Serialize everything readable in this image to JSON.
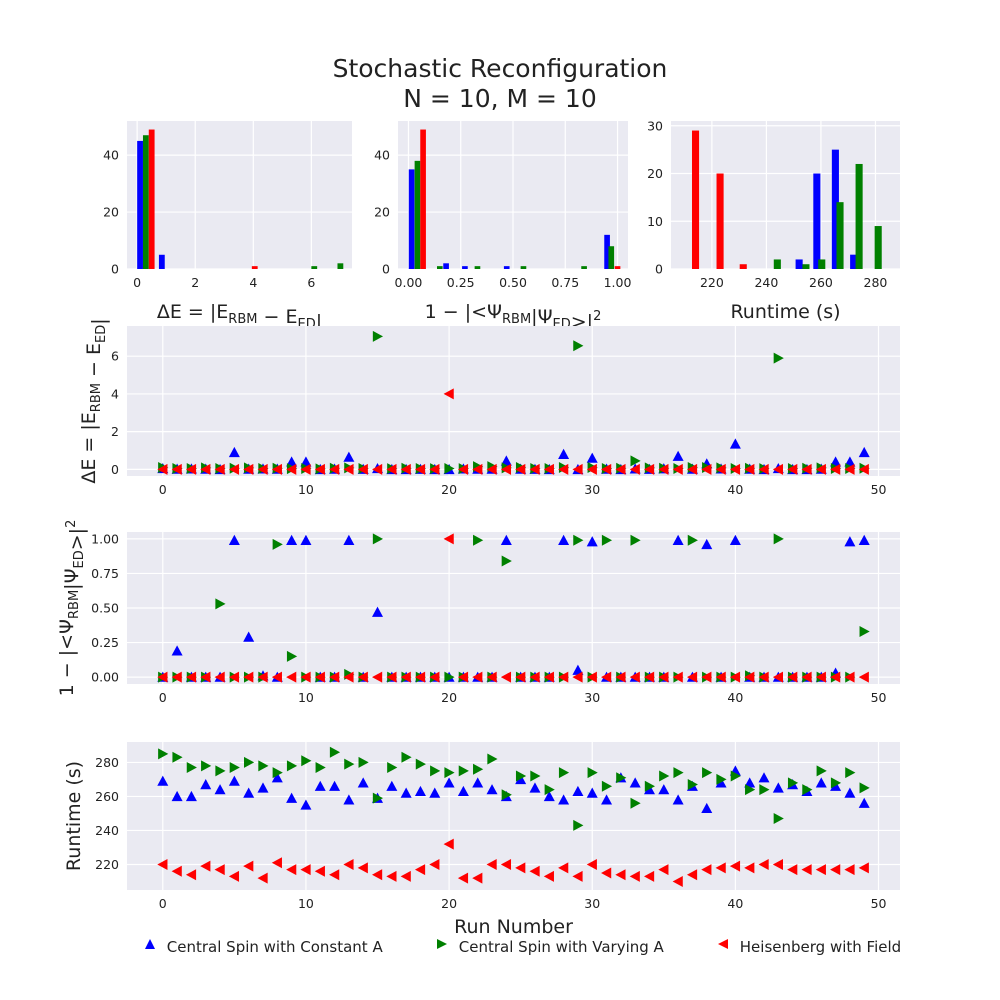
{
  "title": "Stochastic Reconfiguration",
  "subtitle": "N = 10, M = 10",
  "colors": {
    "constant": "#0000ff",
    "varying": "#008000",
    "heisenberg": "#ff0000"
  },
  "legend": [
    {
      "label": "Central Spin with Constant A",
      "marker": "triangle-up",
      "color": "#0000ff"
    },
    {
      "label": "Central Spin with Varying A",
      "marker": "triangle-right",
      "color": "#008000"
    },
    {
      "label": "Heisenberg with Field",
      "marker": "triangle-left",
      "color": "#ff0000"
    }
  ],
  "chart_data": [
    {
      "id": "hist-energy",
      "type": "bar",
      "xlabel": "ΔE = |E_RBM − E_ED|",
      "ylabel": "",
      "xlim": [
        -0.35,
        7.4
      ],
      "ylim": [
        0,
        52
      ],
      "xticks": [
        0,
        2,
        4,
        6
      ],
      "yticks": [
        0,
        20,
        40
      ],
      "bar_width": 0.2,
      "series": [
        {
          "name": "Central Spin with Constant A",
          "bars": [
            {
              "x": 0.1,
              "h": 45
            },
            {
              "x": 0.85,
              "h": 5
            }
          ]
        },
        {
          "name": "Central Spin with Varying A",
          "bars": [
            {
              "x": 0.3,
              "h": 47
            },
            {
              "x": 6.1,
              "h": 1
            },
            {
              "x": 7.0,
              "h": 2
            }
          ]
        },
        {
          "name": "Heisenberg with Field",
          "bars": [
            {
              "x": 0.5,
              "h": 49
            },
            {
              "x": 4.05,
              "h": 1
            }
          ]
        }
      ]
    },
    {
      "id": "hist-overlap",
      "type": "bar",
      "xlabel": "1 − |<Ψ_RBM|Ψ_ED>|²",
      "ylabel": "",
      "xlim": [
        -0.05,
        1.05
      ],
      "ylim": [
        0,
        52
      ],
      "xticks": [
        0.0,
        0.25,
        0.5,
        0.75,
        1.0
      ],
      "xticklabels": [
        "0.00",
        "0.25",
        "0.50",
        "0.75",
        "1.00"
      ],
      "yticks": [
        0,
        20,
        40
      ],
      "bar_width": 0.027,
      "series": [
        {
          "name": "Central Spin with Constant A",
          "bars": [
            {
              "x": 0.015,
              "h": 35
            },
            {
              "x": 0.18,
              "h": 2
            },
            {
              "x": 0.27,
              "h": 1
            },
            {
              "x": 0.47,
              "h": 1
            },
            {
              "x": 0.95,
              "h": 12
            }
          ]
        },
        {
          "name": "Central Spin with Varying A",
          "bars": [
            {
              "x": 0.043,
              "h": 38
            },
            {
              "x": 0.15,
              "h": 1
            },
            {
              "x": 0.33,
              "h": 1
            },
            {
              "x": 0.55,
              "h": 1
            },
            {
              "x": 0.84,
              "h": 1
            },
            {
              "x": 0.97,
              "h": 8
            }
          ]
        },
        {
          "name": "Heisenberg with Field",
          "bars": [
            {
              "x": 0.07,
              "h": 49
            },
            {
              "x": 1.0,
              "h": 1
            }
          ]
        }
      ]
    },
    {
      "id": "hist-runtime",
      "type": "bar",
      "xlabel": "Runtime (s)",
      "ylabel": "",
      "xlim": [
        205,
        289
      ],
      "ylim": [
        0,
        31
      ],
      "xticks": [
        220,
        240,
        260,
        280
      ],
      "yticks": [
        0,
        10,
        20,
        30
      ],
      "bar_width": 2.6,
      "series": [
        {
          "name": "Central Spin with Constant A",
          "bars": [
            {
              "x": 252,
              "h": 2
            },
            {
              "x": 258.5,
              "h": 20
            },
            {
              "x": 265.3,
              "h": 25
            },
            {
              "x": 272,
              "h": 3
            }
          ]
        },
        {
          "name": "Central Spin with Varying A",
          "bars": [
            {
              "x": 244,
              "h": 2
            },
            {
              "x": 254.5,
              "h": 1
            },
            {
              "x": 260.3,
              "h": 2
            },
            {
              "x": 267,
              "h": 14
            },
            {
              "x": 274,
              "h": 22
            },
            {
              "x": 281,
              "h": 9
            }
          ]
        },
        {
          "name": "Heisenberg with Field",
          "bars": [
            {
              "x": 214,
              "h": 29
            },
            {
              "x": 223,
              "h": 20
            },
            {
              "x": 231.5,
              "h": 1
            }
          ]
        }
      ]
    },
    {
      "id": "scatter-energy",
      "type": "scatter",
      "xlabel": "",
      "ylabel": "ΔE = |E_RBM − E_ED|",
      "xlim": [
        -2.5,
        51.5
      ],
      "ylim": [
        -0.35,
        7.6
      ],
      "xticks": [
        0,
        10,
        20,
        30,
        40,
        50
      ],
      "yticks": [
        0,
        2,
        4,
        6
      ],
      "series": [
        {
          "name": "Central Spin with Constant A",
          "values": [
            0.05,
            0.02,
            0.03,
            0.02,
            0.0,
            0.9,
            0.02,
            0.03,
            0.02,
            0.4,
            0.4,
            0.0,
            0.02,
            0.65,
            0.01,
            0.05,
            0.0,
            0.0,
            0.01,
            0.0,
            0.0,
            0.03,
            0.02,
            0.02,
            0.45,
            0.02,
            0.01,
            0.0,
            0.8,
            0.0,
            0.6,
            0.02,
            0.0,
            0.03,
            0.01,
            0.04,
            0.7,
            0.02,
            0.3,
            0.03,
            1.35,
            0.02,
            0.0,
            0.05,
            0.0,
            0.0,
            0.02,
            0.4,
            0.4,
            0.9
          ]
        },
        {
          "name": "Central Spin with Varying A",
          "values": [
            0.1,
            0.05,
            0.05,
            0.08,
            0.05,
            0.06,
            0.08,
            0.05,
            0.06,
            0.04,
            0.05,
            0.03,
            0.06,
            0.08,
            0.05,
            7.05,
            0.04,
            0.06,
            0.05,
            0.04,
            0.05,
            0.04,
            0.15,
            0.15,
            0.08,
            0.1,
            0.05,
            0.05,
            0.1,
            6.55,
            0.1,
            0.05,
            0.06,
            0.45,
            0.08,
            0.06,
            0.05,
            0.1,
            0.1,
            0.08,
            0.05,
            0.06,
            0.04,
            5.9,
            0.05,
            0.06,
            0.08,
            0.05,
            0.05,
            0.06
          ]
        },
        {
          "name": "Heisenberg with Field",
          "values": [
            0.0,
            0.0,
            0.0,
            0.0,
            0.0,
            0.0,
            0.0,
            0.0,
            0.0,
            0.0,
            0.0,
            0.0,
            0.0,
            0.0,
            0.0,
            0.0,
            0.0,
            0.0,
            0.0,
            0.0,
            4.0,
            0.0,
            0.0,
            0.0,
            0.0,
            0.0,
            0.0,
            0.0,
            0.0,
            0.0,
            0.0,
            0.0,
            0.0,
            0.0,
            0.0,
            0.0,
            0.0,
            0.0,
            0.0,
            0.0,
            0.0,
            0.0,
            0.0,
            0.0,
            0.0,
            0.0,
            0.0,
            0.0,
            0.0,
            0.0
          ]
        }
      ]
    },
    {
      "id": "scatter-overlap",
      "type": "scatter",
      "xlabel": "",
      "ylabel": "1 − |<Ψ_RBM|Ψ_ED>|²",
      "xlim": [
        -2.5,
        51.5
      ],
      "ylim": [
        -0.05,
        1.05
      ],
      "xticks": [
        0,
        10,
        20,
        30,
        40,
        50
      ],
      "yticks": [
        0.0,
        0.25,
        0.5,
        0.75,
        1.0
      ],
      "yticklabels": [
        "0.00",
        "0.25",
        "0.50",
        "0.75",
        "1.00"
      ],
      "series": [
        {
          "name": "Central Spin with Constant A",
          "values": [
            0.0,
            0.19,
            0.0,
            0.0,
            0.0,
            0.99,
            0.29,
            0.01,
            0.0,
            0.99,
            0.99,
            0.0,
            0.0,
            0.99,
            0.0,
            0.47,
            0.0,
            0.0,
            0.0,
            0.0,
            0.0,
            0.0,
            0.0,
            0.0,
            0.99,
            0.0,
            0.0,
            0.0,
            0.99,
            0.05,
            0.98,
            0.0,
            0.0,
            0.0,
            0.0,
            0.0,
            0.99,
            0.0,
            0.96,
            0.0,
            0.99,
            0.0,
            0.0,
            0.0,
            0.0,
            0.0,
            0.0,
            0.03,
            0.98,
            0.99
          ]
        },
        {
          "name": "Central Spin with Varying A",
          "values": [
            0.0,
            0.0,
            0.0,
            0.0,
            0.53,
            0.0,
            0.0,
            0.0,
            0.96,
            0.15,
            0.0,
            0.0,
            0.0,
            0.02,
            0.0,
            1.0,
            0.0,
            0.0,
            0.0,
            0.0,
            0.0,
            0.0,
            0.99,
            0.0,
            0.84,
            0.0,
            0.0,
            0.0,
            0.0,
            0.99,
            0.0,
            0.99,
            0.0,
            0.99,
            0.0,
            0.0,
            0.0,
            0.99,
            0.0,
            0.0,
            0.0,
            0.01,
            0.0,
            1.0,
            0.0,
            0.0,
            0.0,
            0.0,
            0.0,
            0.33
          ]
        },
        {
          "name": "Heisenberg with Field",
          "values": [
            0.0,
            0.0,
            0.0,
            0.0,
            0.0,
            0.0,
            0.0,
            0.0,
            0.0,
            0.0,
            0.0,
            0.0,
            0.0,
            0.0,
            0.0,
            0.0,
            0.0,
            0.0,
            0.0,
            0.0,
            1.0,
            0.0,
            0.0,
            0.0,
            0.0,
            0.0,
            0.0,
            0.0,
            0.0,
            0.0,
            0.0,
            0.0,
            0.0,
            0.0,
            0.0,
            0.0,
            0.0,
            0.0,
            0.0,
            0.0,
            0.0,
            0.0,
            0.0,
            0.0,
            0.0,
            0.0,
            0.0,
            0.0,
            0.0,
            0.0
          ]
        }
      ]
    },
    {
      "id": "scatter-runtime",
      "type": "scatter",
      "xlabel": "Run Number",
      "ylabel": "Runtime (s)",
      "xlim": [
        -2.5,
        51.5
      ],
      "ylim": [
        205,
        292
      ],
      "xticks": [
        0,
        10,
        20,
        30,
        40,
        50
      ],
      "yticks": [
        220,
        240,
        260,
        280
      ],
      "series": [
        {
          "name": "Central Spin with Constant A",
          "values": [
            269,
            260,
            260,
            267,
            264,
            269,
            262,
            265,
            271,
            259,
            255,
            266,
            266,
            258,
            268,
            259,
            266,
            262,
            263,
            262,
            268,
            263,
            268,
            264,
            260,
            270,
            265,
            260,
            258,
            263,
            262,
            258,
            271,
            268,
            264,
            264,
            258,
            266,
            253,
            268,
            275,
            268,
            271,
            265,
            267,
            263,
            268,
            266,
            262,
            256
          ]
        },
        {
          "name": "Central Spin with Varying A",
          "values": [
            285,
            283,
            277,
            278,
            275,
            277,
            280,
            278,
            274,
            278,
            281,
            277,
            286,
            279,
            280,
            259,
            277,
            283,
            279,
            275,
            274,
            275,
            276,
            282,
            261,
            272,
            272,
            264,
            274,
            243,
            274,
            266,
            271,
            256,
            266,
            272,
            274,
            267,
            274,
            270,
            272,
            264,
            264,
            247,
            268,
            264,
            275,
            268,
            274,
            265
          ]
        },
        {
          "name": "Heisenberg with Field",
          "values": [
            220,
            216,
            214,
            219,
            217,
            213,
            219,
            212,
            221,
            217,
            217,
            216,
            214,
            220,
            218,
            214,
            213,
            213,
            217,
            220,
            232,
            212,
            212,
            220,
            220,
            218,
            216,
            213,
            218,
            213,
            220,
            215,
            214,
            213,
            213,
            217,
            210,
            214,
            217,
            218,
            219,
            218,
            220,
            220,
            217,
            217,
            217,
            217,
            217,
            218
          ]
        }
      ]
    }
  ]
}
